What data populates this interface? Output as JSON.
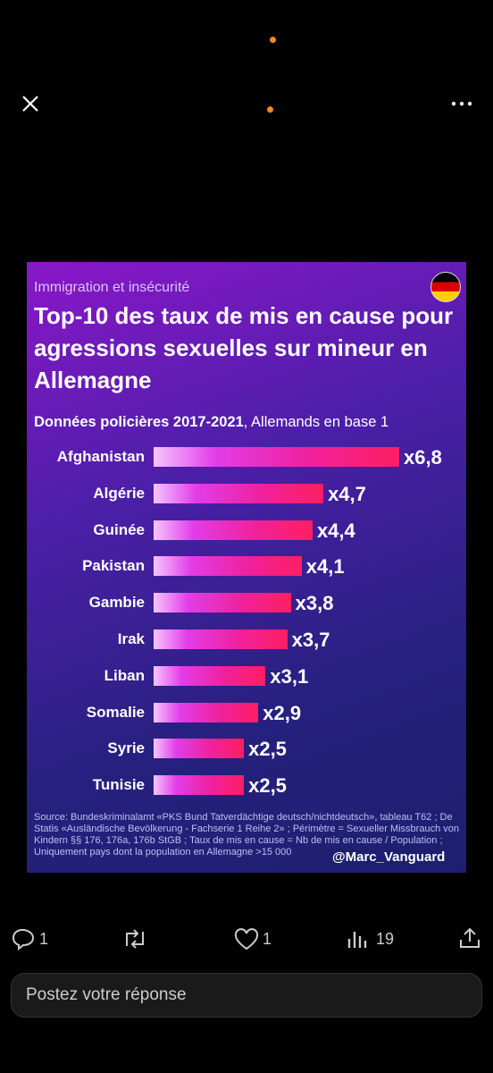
{
  "chart_data": {
    "type": "bar",
    "orientation": "horizontal",
    "kicker": "Immigration et insécurité",
    "title": "Top-10 des taux de mis en cause pour agressions sexuelles sur mineur en Allemagne",
    "subtitle_bold": "Données policières 2017-2021",
    "subtitle_rest": ", Allemands en base 1",
    "categories": [
      "Afghanistan",
      "Algérie",
      "Guinée",
      "Pakistan",
      "Gambie",
      "Irak",
      "Liban",
      "Somalie",
      "Syrie",
      "Tunisie"
    ],
    "values": [
      6.8,
      4.7,
      4.4,
      4.1,
      3.8,
      3.7,
      3.1,
      2.9,
      2.5,
      2.5
    ],
    "value_labels": [
      "x6,8",
      "x4,7",
      "x4,4",
      "x4,1",
      "x3,8",
      "x3,7",
      "x3,1",
      "x2,9",
      "x2,5",
      "x2,5"
    ],
    "source": "Source: Bundeskriminalamt «PKS Bund Tatverdächtige deutsch/nichtdeutsch», tableau T62 ; De Statis «Ausländische Bevölkerung - Fachserie 1 Reihe 2» ; Périmètre = Sexueller Missbrauch von Kindern §§ 176, 176a, 176b StGB ; Taux de mis en cause = Nb de mis en cause / Population ; Uniquement pays dont la population en Allemagne >15 000",
    "credit": "@Marc_Vanguard"
  },
  "actions": {
    "replies": "1",
    "likes": "1",
    "views": "19"
  },
  "reply_box": {
    "placeholder": "Postez votre réponse"
  }
}
